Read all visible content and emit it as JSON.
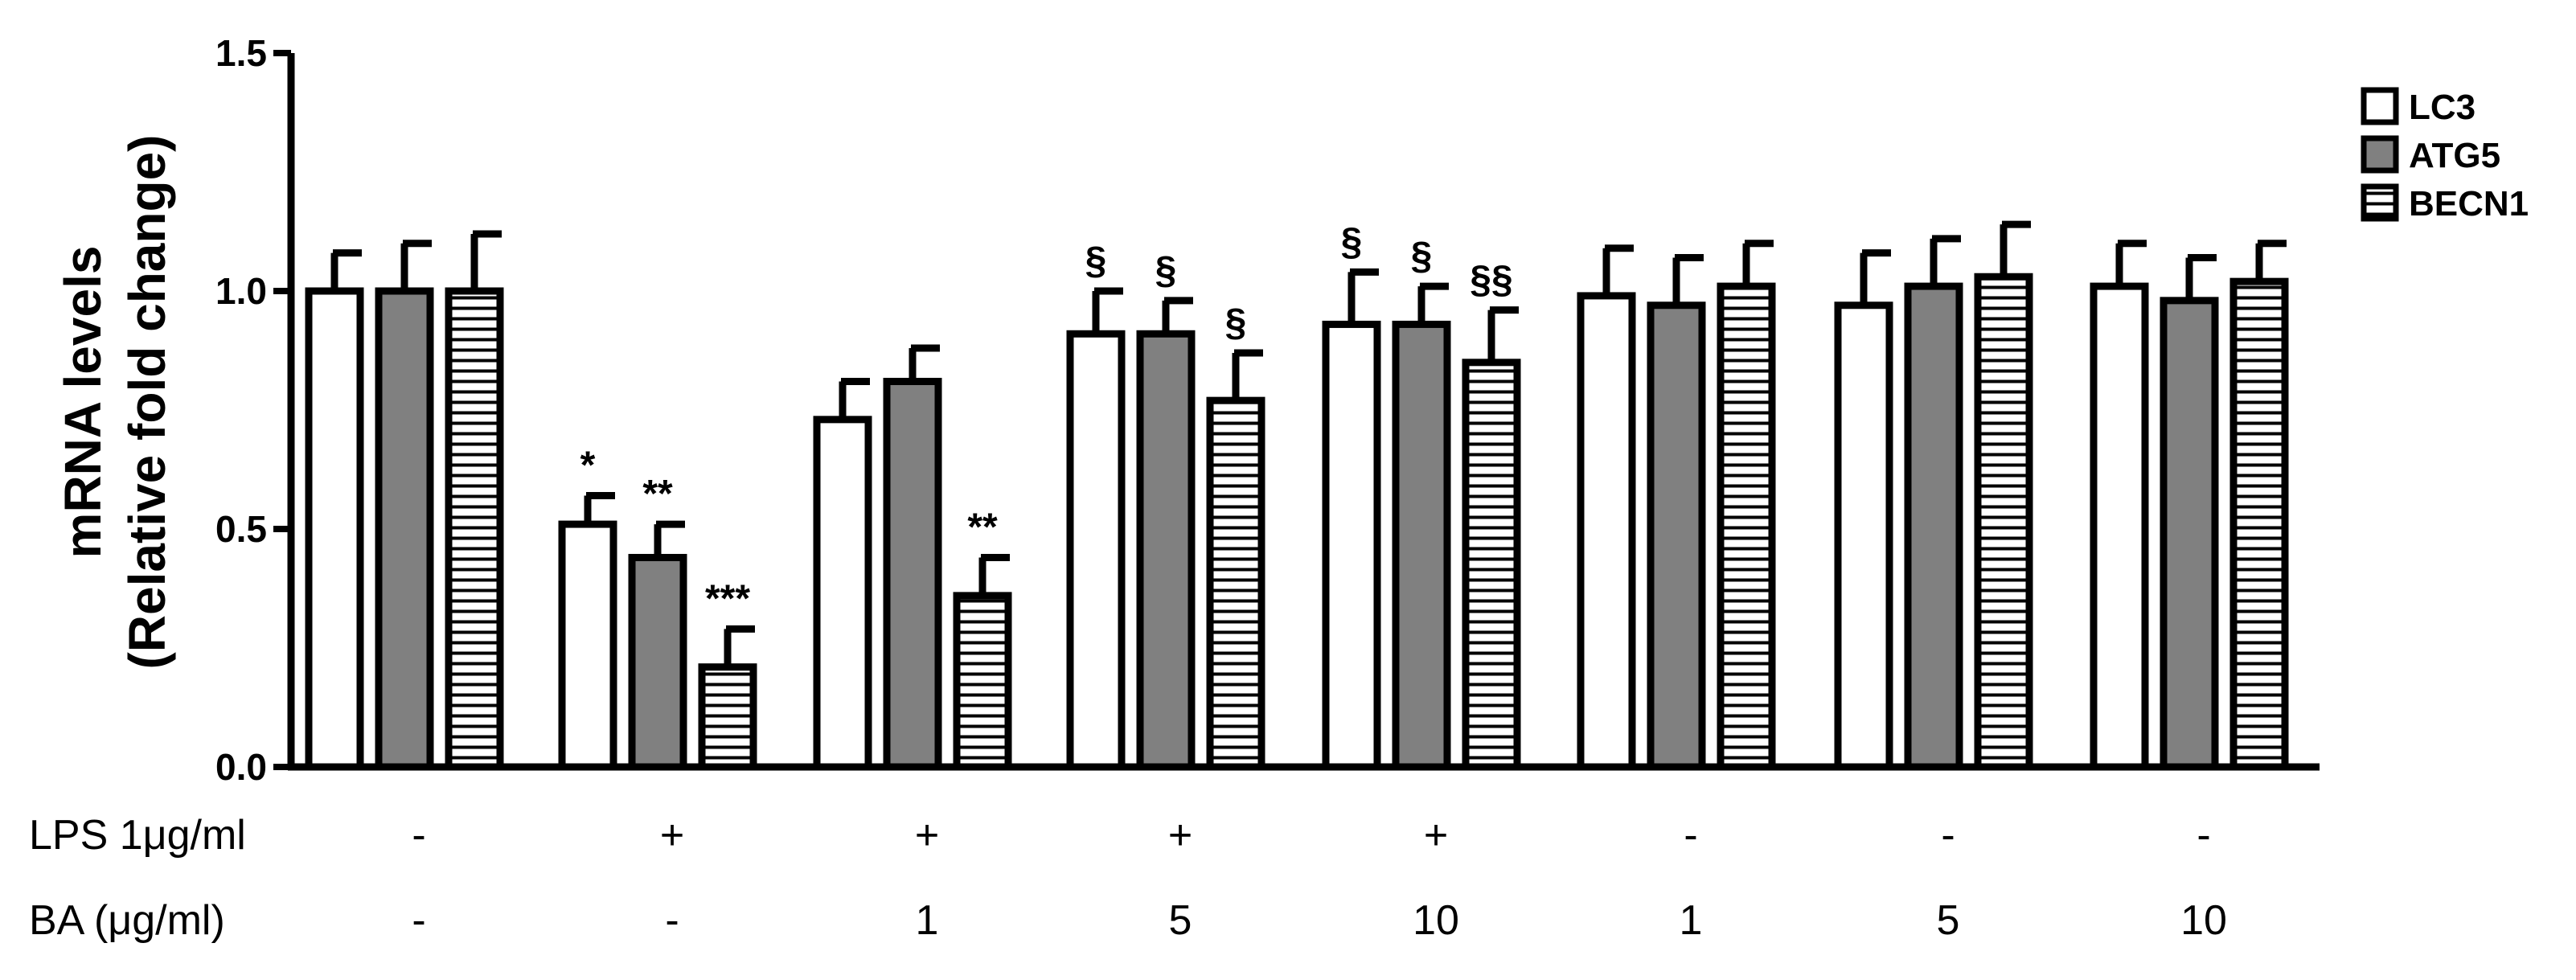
{
  "chart_data": {
    "type": "bar",
    "ylabel_line1": "mRNA levels",
    "ylabel_line2": "(Relative fold change)",
    "ylim": [
      0,
      1.5
    ],
    "yticks": [
      "0.0",
      "0.5",
      "1.0",
      "1.5"
    ],
    "ytick_values": [
      0,
      0.5,
      1.0,
      1.5
    ],
    "legend_position": "top-right",
    "series": [
      {
        "name": "LC3",
        "fill": "white",
        "values": [
          1.0,
          0.51,
          0.73,
          0.91,
          0.93,
          0.99,
          0.97,
          1.01
        ],
        "errors": [
          0.08,
          0.06,
          0.08,
          0.09,
          0.11,
          0.1,
          0.11,
          0.09
        ]
      },
      {
        "name": "ATG5",
        "fill": "gray",
        "values": [
          1.0,
          0.44,
          0.81,
          0.91,
          0.93,
          0.97,
          1.01,
          0.98
        ],
        "errors": [
          0.1,
          0.07,
          0.07,
          0.07,
          0.08,
          0.1,
          0.1,
          0.09
        ]
      },
      {
        "name": "BECN1",
        "fill": "hatched",
        "values": [
          1.0,
          0.21,
          0.36,
          0.77,
          0.85,
          1.01,
          1.03,
          1.02
        ],
        "errors": [
          0.12,
          0.08,
          0.08,
          0.1,
          0.11,
          0.09,
          0.11,
          0.08
        ]
      }
    ],
    "annotations": [
      [
        "",
        "",
        ""
      ],
      [
        "*",
        "**",
        "***"
      ],
      [
        "",
        "",
        "**"
      ],
      [
        "§",
        "§",
        "§"
      ],
      [
        "§",
        "§",
        "§§"
      ],
      [
        "",
        "",
        ""
      ],
      [
        "",
        "",
        ""
      ],
      [
        "",
        "",
        ""
      ]
    ],
    "conditions": [
      {
        "label": "LPS 1μg/ml",
        "values": [
          "-",
          "+",
          "+",
          "+",
          "+",
          "-",
          "-",
          "-"
        ]
      },
      {
        "label": "BA (μg/ml)",
        "values": [
          "-",
          "-",
          "1",
          "5",
          "10",
          "1",
          "5",
          "10"
        ]
      }
    ],
    "colors": {
      "axis": "#000000",
      "lc3": "#ffffff",
      "atg5": "#808080",
      "becn1_stripe": "#000000"
    }
  }
}
